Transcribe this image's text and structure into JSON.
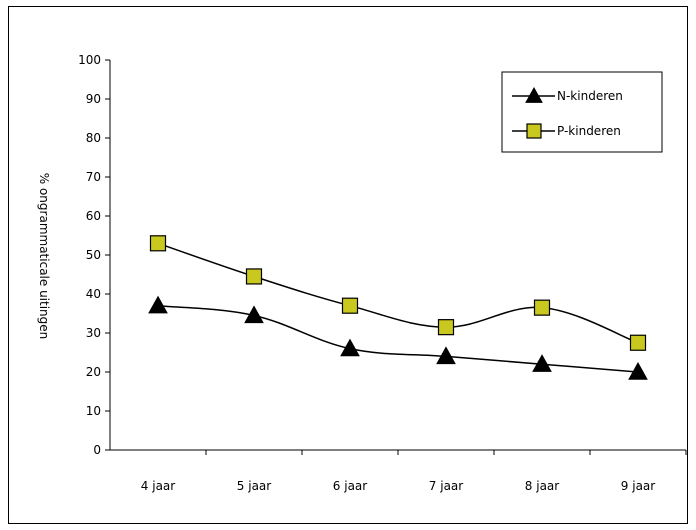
{
  "chart_data": {
    "type": "line",
    "title": "",
    "xlabel": "",
    "ylabel": "% ongrammaticale uitingen",
    "ylim": [
      0,
      100
    ],
    "yticks": [
      0,
      10,
      20,
      30,
      40,
      50,
      60,
      70,
      80,
      90,
      100
    ],
    "categories": [
      "4 jaar",
      "5 jaar",
      "6 jaar",
      "7 jaar",
      "8 jaar",
      "9 jaar"
    ],
    "legend_position": "top-right",
    "grid": false,
    "series": [
      {
        "name": "N-kinderen",
        "values": [
          37,
          34.5,
          26,
          24,
          22,
          20
        ],
        "marker": "triangle",
        "color": "#000000"
      },
      {
        "name": "P-kinderen",
        "values": [
          53,
          44.5,
          37,
          31.5,
          36.5,
          27.5
        ],
        "marker": "square",
        "color": "#c8c81e"
      }
    ]
  }
}
